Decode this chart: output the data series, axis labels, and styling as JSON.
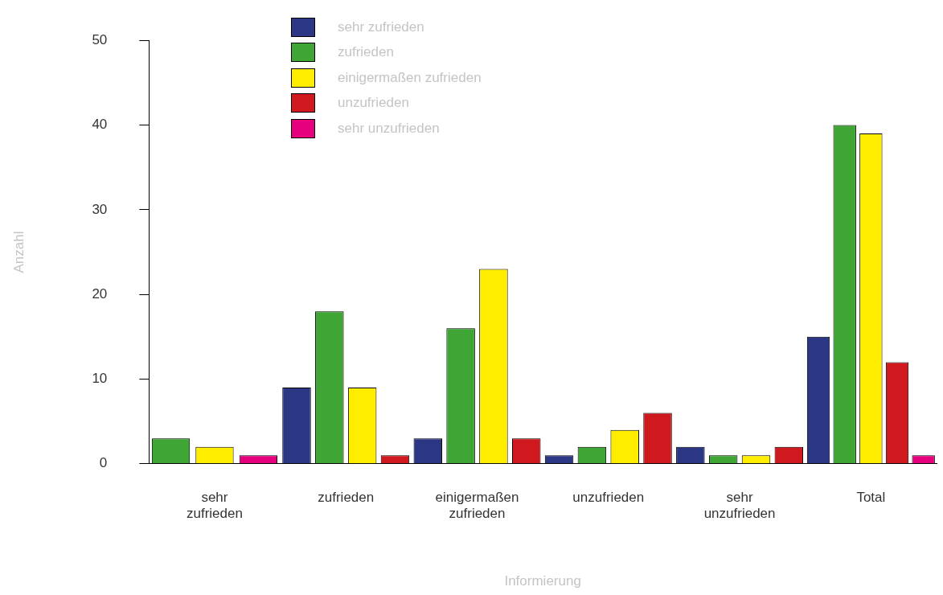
{
  "chart_data": {
    "type": "bar",
    "xlabel": "Informierung",
    "ylabel": "Anzahl",
    "categories": [
      "sehr zufrieden",
      "zufrieden",
      "einigermaßen zufrieden",
      "unzufrieden",
      "sehr unzufrieden",
      "Total"
    ],
    "series": [
      {
        "name": "sehr zufrieden",
        "color": "#2b3784",
        "values": [
          null,
          9,
          3,
          1,
          2,
          15
        ]
      },
      {
        "name": "zufrieden",
        "color": "#3fa535",
        "values": [
          3,
          18,
          16,
          2,
          1,
          40
        ]
      },
      {
        "name": "einigermaßen zufrieden",
        "color": "#ffed00",
        "values": [
          2,
          9,
          23,
          4,
          1,
          39
        ]
      },
      {
        "name": "unzufrieden",
        "color": "#d0181f",
        "values": [
          null,
          1,
          3,
          6,
          2,
          12
        ]
      },
      {
        "name": "sehr unzufrieden",
        "color": "#e6007e",
        "values": [
          1,
          null,
          null,
          null,
          null,
          1
        ]
      }
    ],
    "ylim": [
      0,
      50
    ],
    "yticks": [
      0,
      10,
      20,
      30,
      40,
      50
    ],
    "legend": "top"
  }
}
